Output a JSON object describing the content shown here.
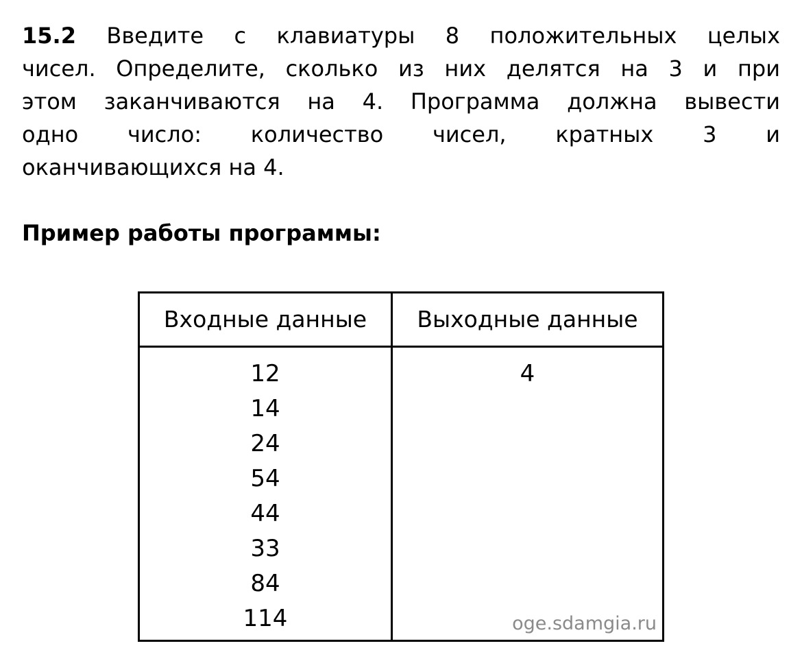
{
  "task": {
    "number": "15.2",
    "lines": [
      " Введите с клавиатуры 8 положительных целых",
      "чисел. Определите, сколько из них делятся на 3 и при",
      "этом заканчиваются на 4. Программа должна вывести",
      "одно число: количество чисел, кратных 3 и",
      "оканчивающихся на 4."
    ]
  },
  "example_heading": "Пример работы программы:",
  "table": {
    "headers": [
      "Входные данные",
      "Выходные данные"
    ],
    "input": [
      "12",
      "14",
      "24",
      "54",
      "44",
      "33",
      "84",
      "114"
    ],
    "output": [
      "4"
    ]
  },
  "watermark": "oge.sdamgia.ru"
}
